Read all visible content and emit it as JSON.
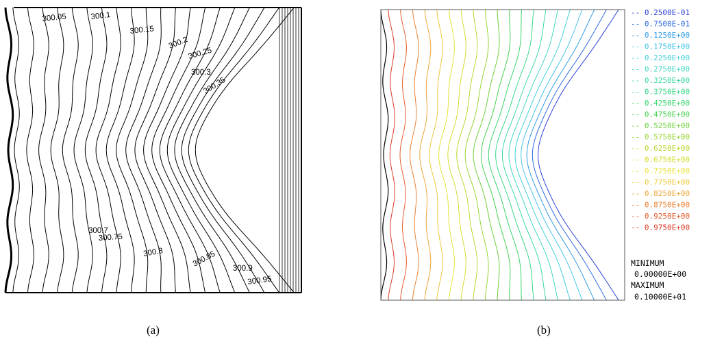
{
  "panel_a": {
    "caption": "(a)",
    "contour_labels": [
      "300.05",
      "300.1",
      "300.15",
      "300.2",
      "300.25",
      "300.3",
      "300.35",
      "300.7",
      "300.75",
      "300.8",
      "300.85",
      "300.9",
      "300.95"
    ]
  },
  "panel_b": {
    "caption": "(b)",
    "legend": [
      {
        "value": "-- 0.2500E-01",
        "color": "#2b3fd6"
      },
      {
        "value": "-- 0.7500E-01",
        "color": "#2f6ae0"
      },
      {
        "value": "-- 0.1250E+00",
        "color": "#2f9be3"
      },
      {
        "value": "-- 0.1750E+00",
        "color": "#45c2e6"
      },
      {
        "value": "-- 0.2250E+00",
        "color": "#3fd0d8"
      },
      {
        "value": "-- 0.2750E+00",
        "color": "#3fd6c2"
      },
      {
        "value": "-- 0.3250E+00",
        "color": "#39d6a4"
      },
      {
        "value": "-- 0.3750E+00",
        "color": "#36d688"
      },
      {
        "value": "-- 0.4250E+00",
        "color": "#35d36a"
      },
      {
        "value": "-- 0.4750E+00",
        "color": "#44d04c"
      },
      {
        "value": "-- 0.5250E+00",
        "color": "#6cd03a"
      },
      {
        "value": "-- 0.5750E+00",
        "color": "#96d634"
      },
      {
        "value": "-- 0.6250E+00",
        "color": "#b9d82f"
      },
      {
        "value": "-- 0.6750E+00",
        "color": "#d6dc2e"
      },
      {
        "value": "-- 0.7250E+00",
        "color": "#e8e23a"
      },
      {
        "value": "-- 0.7750E+00",
        "color": "#eec83a"
      },
      {
        "value": "-- 0.8250E+00",
        "color": "#eda536"
      },
      {
        "value": "-- 0.8750E+00",
        "color": "#ea8032"
      },
      {
        "value": "-- 0.9250E+00",
        "color": "#e35a2c"
      },
      {
        "value": "-- 0.9750E+00",
        "color": "#dc3a26"
      }
    ],
    "min_label": "MINIMUM",
    "min_value": "0.00000E+00",
    "max_label": "MAXIMUM",
    "max_value": "0.10000E+01"
  }
}
